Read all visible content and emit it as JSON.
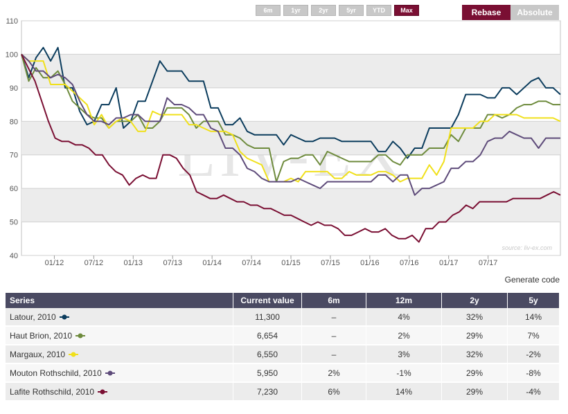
{
  "range_buttons": [
    {
      "label": "6m",
      "active": false
    },
    {
      "label": "1yr",
      "active": false
    },
    {
      "label": "2yr",
      "active": false
    },
    {
      "label": "5yr",
      "active": false
    },
    {
      "label": "YTD",
      "active": false
    },
    {
      "label": "Max",
      "active": true
    }
  ],
  "mode_buttons": {
    "rebase": "Rebase",
    "absolute": "Absolute"
  },
  "generate_code": "Generate code",
  "watermark": {
    "logo": "LIV-EX",
    "source": "source: liv-ex.com"
  },
  "chart_data": {
    "type": "line",
    "ylim": [
      40,
      110
    ],
    "yticks": [
      40,
      50,
      60,
      70,
      80,
      90,
      100,
      110
    ],
    "xlim": [
      0,
      82
    ],
    "xticks": [
      {
        "x": 5,
        "label": "01/12"
      },
      {
        "x": 11,
        "label": "07/12"
      },
      {
        "x": 17,
        "label": "01/13"
      },
      {
        "x": 23,
        "label": "07/13"
      },
      {
        "x": 29,
        "label": "01/14"
      },
      {
        "x": 35,
        "label": "07/14"
      },
      {
        "x": 41,
        "label": "01/15"
      },
      {
        "x": 47,
        "label": "07/15"
      },
      {
        "x": 53,
        "label": "01/16"
      },
      {
        "x": 59,
        "label": "07/16"
      },
      {
        "x": 65,
        "label": "01/17"
      },
      {
        "x": 71,
        "label": "07/17"
      }
    ],
    "grid": true,
    "series": [
      {
        "name": "Latour, 2010",
        "color": "#0b3c5d",
        "values": [
          100,
          93,
          99,
          102,
          98,
          102,
          90,
          90,
          83,
          79,
          80,
          85,
          85,
          90,
          78,
          80,
          86,
          86,
          92,
          98,
          95,
          95,
          95,
          92,
          92,
          92,
          84,
          84,
          79,
          79,
          81,
          77,
          76,
          76,
          76,
          76,
          73,
          76,
          75,
          74,
          74,
          75,
          75,
          75,
          74,
          74,
          74,
          74,
          74,
          71,
          71,
          74,
          72,
          69,
          72,
          72,
          78,
          78,
          78,
          78,
          82,
          88,
          88,
          88,
          87,
          87,
          90,
          90,
          88,
          90,
          92,
          93,
          90,
          90,
          88
        ]
      },
      {
        "name": "Haut Brion, 2010",
        "color": "#6e8b3d",
        "values": [
          100,
          92,
          96,
          93,
          93,
          95,
          91,
          86,
          84,
          82,
          81,
          81,
          78,
          80,
          80,
          80,
          82,
          78,
          78,
          80,
          84,
          84,
          84,
          82,
          78,
          80,
          80,
          80,
          76,
          76,
          75,
          73,
          72,
          72,
          72,
          62,
          68,
          69,
          69,
          70,
          70,
          67,
          71,
          70,
          69,
          68,
          68,
          68,
          68,
          70,
          70,
          68,
          67,
          70,
          70,
          70,
          72,
          72,
          72,
          76,
          74,
          78,
          78,
          78,
          82,
          82,
          81,
          82,
          84,
          85,
          85,
          86,
          86,
          85,
          85
        ]
      },
      {
        "name": "Margaux, 2010",
        "color": "#f0e01a",
        "values": [
          100,
          98,
          98,
          98,
          91,
          91,
          91,
          89,
          87,
          85,
          79,
          82,
          78,
          80,
          81,
          80,
          77,
          77,
          83,
          82,
          82,
          82,
          82,
          79,
          79,
          78,
          77,
          77,
          77,
          76,
          71,
          69,
          68,
          67,
          62,
          62,
          62,
          63,
          62,
          65,
          65,
          65,
          65,
          63,
          63,
          65,
          64,
          64,
          64,
          65,
          65,
          64,
          62,
          63,
          63,
          63,
          67,
          64,
          68,
          78,
          78,
          78,
          78,
          80,
          80,
          82,
          82,
          82,
          82,
          81,
          81,
          81,
          81,
          81,
          80
        ]
      },
      {
        "name": "Mouton Rothschild, 2010",
        "color": "#5e4b7a",
        "values": [
          100,
          98,
          95,
          95,
          93,
          94,
          93,
          91,
          86,
          82,
          80,
          80,
          79,
          81,
          81,
          82,
          82,
          80,
          80,
          80,
          87,
          85,
          85,
          84,
          82,
          82,
          78,
          77,
          72,
          72,
          70,
          66,
          65,
          63,
          62,
          62,
          62,
          62,
          63,
          62,
          61,
          60,
          62,
          62,
          62,
          62,
          62,
          62,
          62,
          64,
          64,
          62,
          64,
          64,
          58,
          60,
          60,
          61,
          62,
          66,
          66,
          68,
          68,
          70,
          74,
          75,
          75,
          77,
          76,
          75,
          75,
          72,
          75,
          75,
          75
        ]
      },
      {
        "name": "Lafite Rothschild, 2010",
        "color": "#7a0f33",
        "values": [
          100,
          96,
          92,
          86,
          80,
          75,
          74,
          74,
          73,
          73,
          72,
          70,
          70,
          67,
          65,
          64,
          61,
          63,
          64,
          63,
          63,
          70,
          70,
          69,
          66,
          64,
          59,
          58,
          57,
          57,
          58,
          57,
          56,
          56,
          55,
          55,
          54,
          54,
          53,
          52,
          52,
          51,
          50,
          49,
          50,
          49,
          49,
          48,
          46,
          46,
          47,
          48,
          47,
          47,
          48,
          46,
          45,
          45,
          46,
          44,
          48,
          48,
          50,
          50,
          52,
          53,
          55,
          54,
          56,
          56,
          56,
          56,
          56,
          57,
          57,
          57,
          57,
          57,
          58,
          59,
          58
        ]
      }
    ]
  },
  "table": {
    "headers": [
      "Series",
      "Current value",
      "6m",
      "12m",
      "2y",
      "5y"
    ],
    "rows": [
      {
        "name": "Latour, 2010",
        "color": "#0b3c5d",
        "cells": [
          "11,300",
          "–",
          "4%",
          "32%",
          "14%"
        ]
      },
      {
        "name": "Haut Brion, 2010",
        "color": "#6e8b3d",
        "cells": [
          "6,654",
          "–",
          "2%",
          "29%",
          "7%"
        ]
      },
      {
        "name": "Margaux, 2010",
        "color": "#f0e01a",
        "cells": [
          "6,550",
          "–",
          "3%",
          "32%",
          "-2%"
        ]
      },
      {
        "name": "Mouton Rothschild, 2010",
        "color": "#5e4b7a",
        "cells": [
          "5,950",
          "2%",
          "-1%",
          "29%",
          "-8%"
        ]
      },
      {
        "name": "Lafite Rothschild, 2010",
        "color": "#7a0f33",
        "cells": [
          "7,230",
          "6%",
          "14%",
          "29%",
          "-4%"
        ]
      }
    ]
  }
}
